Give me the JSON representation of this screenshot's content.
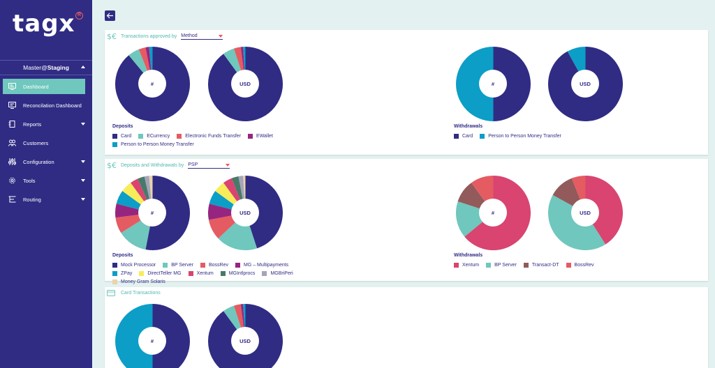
{
  "brand": {
    "logo_text": "tagx",
    "registered_mark": "R"
  },
  "sidebar": {
    "user": {
      "prefix": "Master@",
      "env": "Staging"
    },
    "items": [
      {
        "label": "Dashboard",
        "icon": "dashboard-icon",
        "active": true,
        "has_caret": false
      },
      {
        "label": "Reconcilation Dashboard",
        "icon": "reconciliation-icon",
        "active": false,
        "has_caret": false
      },
      {
        "label": "Reports",
        "icon": "reports-icon",
        "active": false,
        "has_caret": true
      },
      {
        "label": "Customers",
        "icon": "customers-icon",
        "active": false,
        "has_caret": false
      },
      {
        "label": "Configuration",
        "icon": "sliders-icon",
        "active": false,
        "has_caret": true
      },
      {
        "label": "Tools",
        "icon": "gear-icon",
        "active": false,
        "has_caret": true
      },
      {
        "label": "Routing",
        "icon": "routing-icon",
        "active": false,
        "has_caret": true
      }
    ]
  },
  "colors": {
    "navy": "#302c84",
    "teal": "#6fc7bd",
    "red": "#e55b62",
    "purple": "#962580",
    "blue": "#0c9ec7",
    "yellow": "#f8ec5a",
    "pink": "#d94471",
    "green": "#477a6a",
    "grey": "#a5a5b8",
    "beige": "#ead3ad",
    "brown": "#925a5a"
  },
  "panels": [
    {
      "title": "Transactions approved by",
      "select": "Method",
      "icon": "dollar-euro-icon",
      "charts": [
        {
          "center": "#",
          "slices": [
            [
              "navy",
              0.89
            ],
            [
              "teal",
              0.05
            ],
            [
              "red",
              0.03
            ],
            [
              "purple",
              0.015
            ],
            [
              "blue",
              0.015
            ]
          ]
        },
        {
          "center": "USD",
          "slices": [
            [
              "navy",
              0.9
            ],
            [
              "teal",
              0.05
            ],
            [
              "red",
              0.03
            ],
            [
              "purple",
              0.01
            ],
            [
              "blue",
              0.01
            ]
          ]
        },
        {
          "center": "#",
          "slices": [
            [
              "navy",
              0.5
            ],
            [
              "blue",
              0.5
            ]
          ]
        },
        {
          "center": "USD",
          "slices": [
            [
              "navy",
              0.92
            ],
            [
              "blue",
              0.08
            ]
          ]
        }
      ],
      "left_legend": {
        "title": "Deposits",
        "items": [
          {
            "label": "Card",
            "color": "navy"
          },
          {
            "label": "ECurrency",
            "color": "teal"
          },
          {
            "label": "Electronic Funds Transfer",
            "color": "red"
          },
          {
            "label": "EWallet",
            "color": "purple"
          },
          {
            "label": "Person to Person Money Transfer",
            "color": "blue"
          }
        ]
      },
      "right_legend": {
        "title": "Withdrawals",
        "items": [
          {
            "label": "Card",
            "color": "navy"
          },
          {
            "label": "Person to Person Money Transfer",
            "color": "blue"
          }
        ]
      }
    },
    {
      "title": "Deposits and Withdrawals by",
      "select": "PSP",
      "icon": "dollar-euro-icon",
      "charts": [
        {
          "center": "#",
          "slices": [
            [
              "navy",
              0.53
            ],
            [
              "teal",
              0.13
            ],
            [
              "red",
              0.07
            ],
            [
              "purple",
              0.06
            ],
            [
              "blue",
              0.06
            ],
            [
              "yellow",
              0.05
            ],
            [
              "pink",
              0.035
            ],
            [
              "green",
              0.03
            ],
            [
              "grey",
              0.02
            ],
            [
              "beige",
              0.015
            ]
          ]
        },
        {
          "center": "USD",
          "slices": [
            [
              "navy",
              0.45
            ],
            [
              "teal",
              0.18
            ],
            [
              "red",
              0.09
            ],
            [
              "purple",
              0.07
            ],
            [
              "blue",
              0.06
            ],
            [
              "yellow",
              0.05
            ],
            [
              "pink",
              0.04
            ],
            [
              "green",
              0.03
            ],
            [
              "grey",
              0.02
            ],
            [
              "beige",
              0.01
            ]
          ]
        },
        {
          "center": "#",
          "slices": [
            [
              "pink",
              0.64
            ],
            [
              "teal",
              0.16
            ],
            [
              "brown",
              0.1
            ],
            [
              "red",
              0.1
            ]
          ]
        },
        {
          "center": "USD",
          "slices": [
            [
              "pink",
              0.41
            ],
            [
              "teal",
              0.42
            ],
            [
              "brown",
              0.11
            ],
            [
              "red",
              0.06
            ]
          ]
        }
      ],
      "left_legend": {
        "title": "Deposits",
        "items": [
          {
            "label": "Mock Processor",
            "color": "navy"
          },
          {
            "label": "BP Server",
            "color": "teal"
          },
          {
            "label": "BossRev",
            "color": "red"
          },
          {
            "label": "MG – Multipayments",
            "color": "purple"
          },
          {
            "label": "ZPay",
            "color": "blue"
          },
          {
            "label": "DirectTeller MG",
            "color": "yellow"
          },
          {
            "label": "Xentum",
            "color": "pink"
          },
          {
            "label": "MGIntlprocs",
            "color": "green"
          },
          {
            "label": "MGBriPeri",
            "color": "grey"
          },
          {
            "label": "Money Gram Solaris",
            "color": "beige"
          }
        ]
      },
      "right_legend": {
        "title": "Withdrawals",
        "items": [
          {
            "label": "Xentum",
            "color": "pink"
          },
          {
            "label": "BP Server",
            "color": "teal"
          },
          {
            "label": "Transact-DT",
            "color": "brown"
          },
          {
            "label": "BossRev",
            "color": "red"
          }
        ]
      }
    },
    {
      "title": "Card Transactions",
      "select": null,
      "icon": "credit-card-icon",
      "charts": [
        {
          "center": "#",
          "slices": [
            [
              "navy",
              0.5
            ],
            [
              "blue",
              0.5
            ]
          ]
        },
        {
          "center": "USD",
          "slices": [
            [
              "navy",
              0.9
            ],
            [
              "teal",
              0.05
            ],
            [
              "red",
              0.03
            ],
            [
              "purple",
              0.01
            ],
            [
              "blue",
              0.01
            ]
          ]
        }
      ]
    }
  ]
}
